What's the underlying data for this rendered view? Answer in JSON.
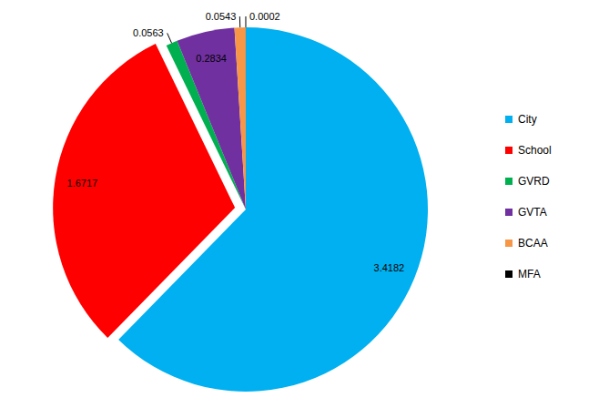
{
  "chart_data": {
    "type": "pie",
    "categories": [
      "City",
      "School",
      "GVRD",
      "GVTA",
      "BCAA",
      "MFA"
    ],
    "values": [
      3.4182,
      1.6717,
      0.0563,
      0.2834,
      0.0543,
      0.0002
    ],
    "colors": [
      "#00b0f0",
      "#ff0000",
      "#00b050",
      "#7030a0",
      "#f79646",
      "#000000"
    ],
    "data_labels": true,
    "legend": "right"
  }
}
